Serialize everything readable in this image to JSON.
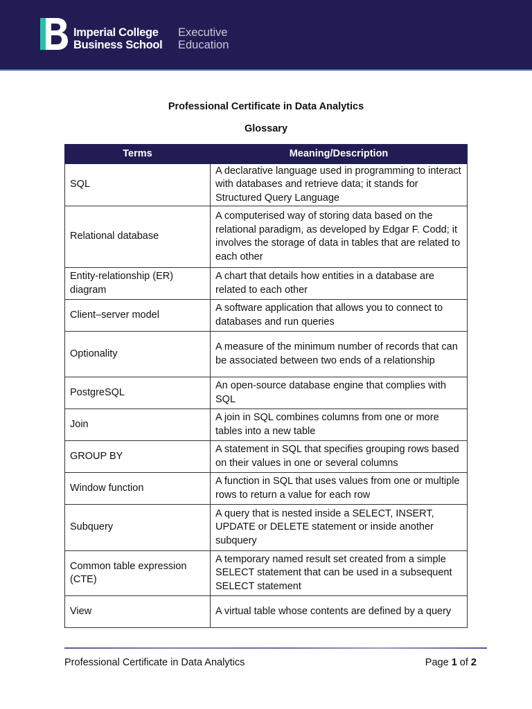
{
  "header": {
    "logo_line1": "Imperial College",
    "logo_line2": "Business School",
    "logo_exec1": "Executive",
    "logo_exec2": "Education",
    "bg_color": "#211d54",
    "accent": "#2bbfa8"
  },
  "document": {
    "title": "Professional Certificate in Data Analytics",
    "subtitle": "Glossary"
  },
  "table": {
    "headers": [
      "Terms",
      "Meaning/Description"
    ],
    "rows": [
      {
        "term": "SQL",
        "meaning": "A declarative language used in programming to interact with databases and retrieve data; it stands for Structured Query Language"
      },
      {
        "term": "Relational database",
        "meaning": "A computerised way of storing data based on the relational paradigm, as developed by Edgar F. Codd; it involves the storage of data in tables that are related to each other"
      },
      {
        "term": "Entity-relationship (ER) diagram",
        "meaning": "A chart that details how entities in a database are related to each other"
      },
      {
        "term": "Client–server model",
        "meaning": "A software application that allows you to connect to databases and run queries"
      },
      {
        "term": "Optionality",
        "meaning": "A measure of the minimum number of records that can be associated between two ends of a relationship"
      },
      {
        "term": "PostgreSQL",
        "meaning": "An open-source database engine that complies with SQL"
      },
      {
        "term": "Join",
        "meaning": "A join in SQL combines columns from one or more tables into a new table"
      },
      {
        "term": "GROUP BY",
        "meaning": "A statement in SQL that specifies grouping rows based on their values in one or several columns"
      },
      {
        "term": "Window function",
        "meaning": "A function in SQL that uses values from one or multiple rows to return a value for each row"
      },
      {
        "term": "Subquery",
        "meaning": "A query that is nested inside a SELECT, INSERT, UPDATE or DELETE statement or inside another subquery"
      },
      {
        "term": "Common table expression (CTE)",
        "meaning": "A temporary named result set created from a simple SELECT statement that can be used in a subsequent SELECT statement"
      },
      {
        "term": "View",
        "meaning": "A virtual table whose contents are defined by a query"
      }
    ]
  },
  "footer": {
    "left": "Professional Certificate in Data Analytics",
    "page_word": "Page",
    "page_current": "1",
    "of_word": "of",
    "page_total": "2"
  }
}
